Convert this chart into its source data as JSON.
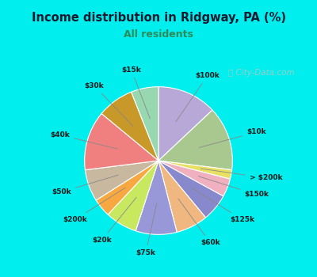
{
  "title": "Income distribution in Ridgway, PA (%)",
  "subtitle": "All residents",
  "title_color": "#1a1a2e",
  "subtitle_color": "#2e8b57",
  "background_color": "#00EEEE",
  "chart_bg_top": "#d8f0e8",
  "chart_bg_bot": "#e8f8f0",
  "watermark": "City-Data.com",
  "slices": [
    {
      "label": "$100k",
      "value": 13,
      "color": "#b8a8d8"
    },
    {
      "label": "$10k",
      "value": 14,
      "color": "#a8c890"
    },
    {
      "label": "> $200k",
      "value": 2,
      "color": "#e8e060"
    },
    {
      "label": "$150k",
      "value": 4,
      "color": "#f0b0c0"
    },
    {
      "label": "$125k",
      "value": 6,
      "color": "#8888cc"
    },
    {
      "label": "$60k",
      "value": 7,
      "color": "#f0b880"
    },
    {
      "label": "$75k",
      "value": 9,
      "color": "#9898d8"
    },
    {
      "label": "$20k",
      "value": 7,
      "color": "#c8e860"
    },
    {
      "label": "$200k",
      "value": 4,
      "color": "#f8a840"
    },
    {
      "label": "$50k",
      "value": 7,
      "color": "#c8b8a0"
    },
    {
      "label": "$40k",
      "value": 13,
      "color": "#f08080"
    },
    {
      "label": "$30k",
      "value": 8,
      "color": "#c89828"
    },
    {
      "label": "$15k",
      "value": 6,
      "color": "#98d8b0"
    }
  ]
}
